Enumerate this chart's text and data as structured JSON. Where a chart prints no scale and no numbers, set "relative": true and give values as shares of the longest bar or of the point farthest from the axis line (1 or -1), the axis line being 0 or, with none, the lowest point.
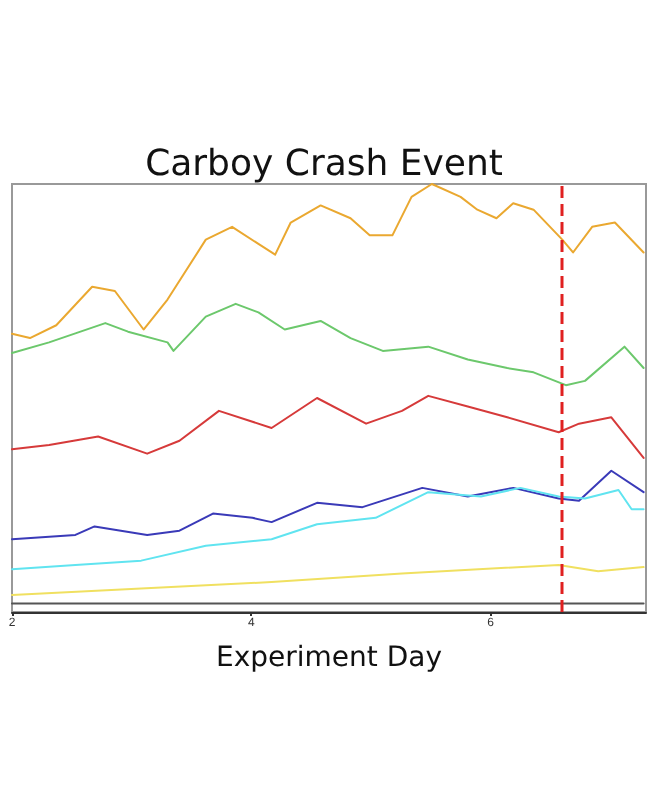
{
  "chart_data": {
    "type": "line",
    "title": "Carboy Crash Event",
    "xlabel": "Experiment Day",
    "relative": true,
    "marker": "none",
    "line_style": "solid",
    "xlim": [
      2,
      7.3
    ],
    "xticks": [
      2,
      4,
      6
    ],
    "ref_lines": [
      {
        "axis": "x",
        "value": 6.59,
        "color": "#e02020",
        "line_style": "dashed"
      }
    ],
    "series": [
      {
        "color": "#eaa830",
        "x": [
          2.0,
          2.15,
          2.37,
          2.67,
          2.86,
          3.1,
          3.3,
          3.62,
          3.84,
          4.06,
          4.2,
          4.33,
          4.58,
          4.83,
          4.99,
          5.18,
          5.34,
          5.51,
          5.75,
          5.89,
          6.05,
          6.19,
          6.36,
          6.6,
          6.69,
          6.85,
          7.04,
          7.28
        ],
        "values": [
          0.65,
          0.64,
          0.67,
          0.76,
          0.75,
          0.66,
          0.73,
          0.87,
          0.9,
          0.86,
          0.835,
          0.91,
          0.95,
          0.92,
          0.88,
          0.88,
          0.97,
          1.0,
          0.97,
          0.94,
          0.92,
          0.955,
          0.94,
          0.87,
          0.84,
          0.9,
          0.91,
          0.84
        ]
      },
      {
        "color": "#6cc86c",
        "x": [
          2.0,
          2.31,
          2.78,
          2.97,
          3.3,
          3.35,
          3.62,
          3.87,
          4.06,
          4.28,
          4.58,
          4.83,
          5.1,
          5.48,
          5.81,
          6.14,
          6.36,
          6.63,
          6.79,
          7.12,
          7.28
        ],
        "values": [
          0.605,
          0.63,
          0.675,
          0.655,
          0.63,
          0.61,
          0.69,
          0.72,
          0.7,
          0.66,
          0.68,
          0.64,
          0.61,
          0.62,
          0.59,
          0.57,
          0.56,
          0.53,
          0.54,
          0.62,
          0.57
        ]
      },
      {
        "color": "#d63a3a",
        "x": [
          2.0,
          2.31,
          2.72,
          3.13,
          3.4,
          3.73,
          4.17,
          4.55,
          4.96,
          5.26,
          5.48,
          5.81,
          6.14,
          6.57,
          6.74,
          7.01,
          7.28
        ],
        "values": [
          0.38,
          0.39,
          0.41,
          0.37,
          0.4,
          0.47,
          0.43,
          0.5,
          0.44,
          0.47,
          0.505,
          0.48,
          0.455,
          0.42,
          0.44,
          0.455,
          0.36
        ]
      },
      {
        "color": "#3a3ab8",
        "x": [
          2.0,
          2.53,
          2.69,
          3.13,
          3.4,
          3.68,
          4.01,
          4.17,
          4.55,
          4.93,
          5.43,
          5.81,
          6.19,
          6.57,
          6.74,
          7.01,
          7.28
        ],
        "values": [
          0.17,
          0.18,
          0.2,
          0.18,
          0.19,
          0.23,
          0.22,
          0.21,
          0.255,
          0.245,
          0.29,
          0.27,
          0.29,
          0.265,
          0.26,
          0.33,
          0.28
        ]
      },
      {
        "color": "#60e4f0",
        "x": [
          2.0,
          2.53,
          3.08,
          3.62,
          4.17,
          4.55,
          5.04,
          5.48,
          5.92,
          6.25,
          6.57,
          6.79,
          7.07,
          7.18,
          7.28
        ],
        "values": [
          0.1,
          0.11,
          0.12,
          0.155,
          0.17,
          0.205,
          0.22,
          0.28,
          0.27,
          0.29,
          0.27,
          0.265,
          0.285,
          0.24,
          0.24
        ]
      },
      {
        "color": "#f0e060",
        "x": [
          2.0,
          3.08,
          4.17,
          5.26,
          6.57,
          6.9,
          7.28
        ],
        "values": [
          0.04,
          0.055,
          0.07,
          0.09,
          0.11,
          0.095,
          0.105
        ]
      },
      {
        "color": "#555555",
        "x": [
          2.0,
          4.0,
          6.0,
          7.28
        ],
        "values": [
          0.02,
          0.02,
          0.02,
          0.02
        ]
      }
    ]
  }
}
